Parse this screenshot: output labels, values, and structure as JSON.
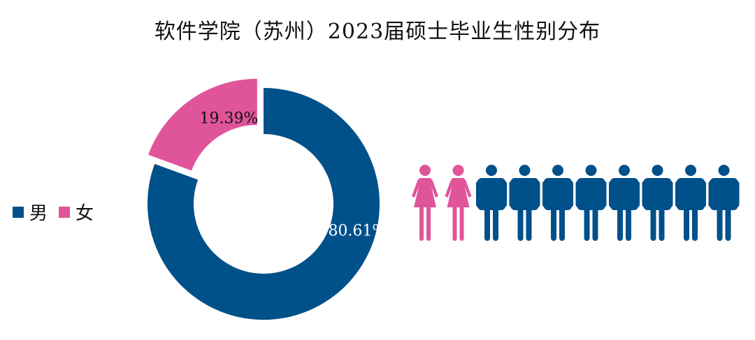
{
  "chart_data": {
    "type": "pie",
    "title": "软件学院（苏州）2023届硕士毕业生性别分布",
    "categories": [
      "男",
      "女"
    ],
    "values": [
      80.61,
      19.39
    ],
    "value_labels": [
      "80.61%",
      "19.39%"
    ],
    "colors": [
      "#00508A",
      "#E0559A"
    ],
    "donut": true,
    "exploded": "女",
    "legend": "left",
    "pictogram": {
      "female_count": 2,
      "male_count": 8,
      "female_color": "#E0559A",
      "male_color": "#00508A"
    }
  }
}
